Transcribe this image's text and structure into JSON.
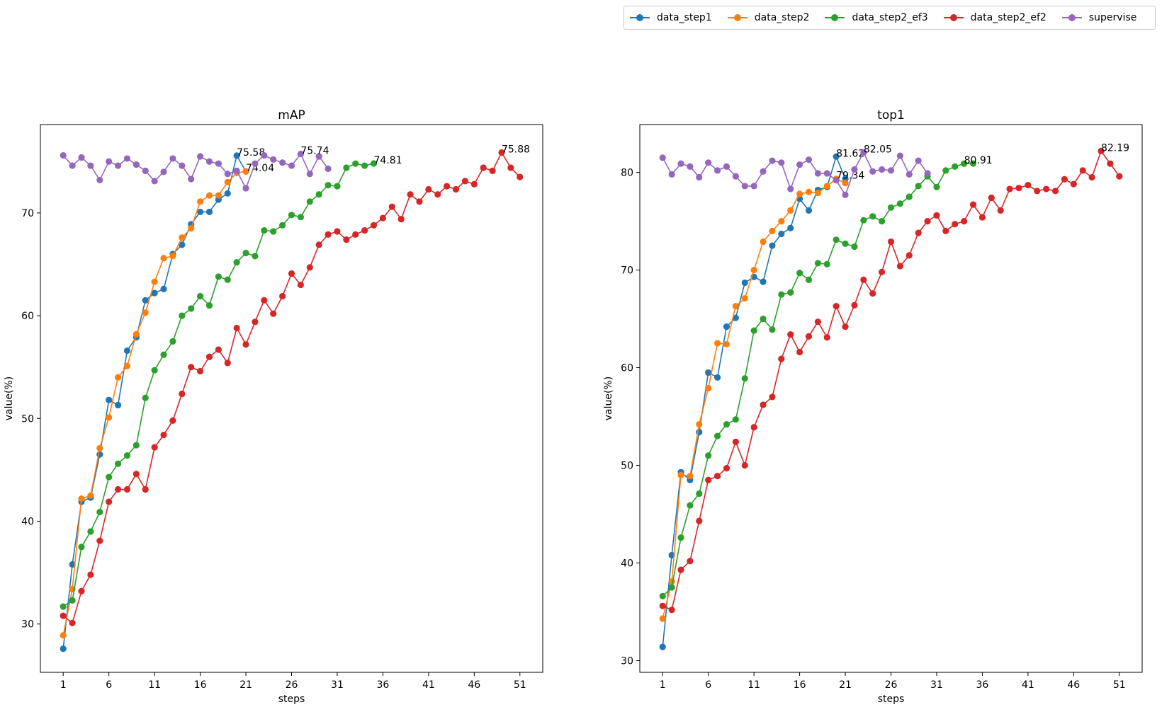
{
  "chart_data": [
    {
      "type": "line",
      "title": "mAP",
      "xlabel": "steps",
      "ylabel": "value(%)",
      "xlim": [
        -1.5,
        53.5
      ],
      "ylim": [
        25.3,
        78.6
      ],
      "xticks": [
        1,
        6,
        11,
        16,
        21,
        26,
        31,
        36,
        41,
        46,
        51
      ],
      "yticks": [
        30,
        40,
        50,
        60,
        70
      ],
      "series": [
        {
          "name": "data_step1",
          "color": "#1f77b4",
          "x_start": 1,
          "values": [
            27.6,
            35.8,
            41.9,
            42.3,
            46.5,
            51.8,
            51.3,
            56.6,
            57.9,
            61.5,
            62.2,
            62.6,
            66.0,
            66.9,
            68.9,
            70.1,
            70.1,
            71.3,
            71.9,
            75.58,
            74.04
          ],
          "annotation": {
            "x": 20,
            "y": 75.58,
            "text": "75.58"
          }
        },
        {
          "name": "data_step2",
          "color": "#ff7f0e",
          "x_start": 1,
          "values": [
            28.9,
            33.4,
            42.2,
            42.5,
            47.1,
            50.1,
            54.0,
            55.1,
            58.2,
            60.3,
            63.3,
            65.6,
            65.8,
            67.6,
            68.5,
            71.1,
            71.7,
            71.7,
            73.0,
            73.9,
            74.04
          ],
          "annotation": {
            "x": 21,
            "y": 74.04,
            "text": "74.04"
          }
        },
        {
          "name": "data_step2_ef3",
          "color": "#2ca02c",
          "x_start": 1,
          "values": [
            31.7,
            32.3,
            37.5,
            39.0,
            40.9,
            44.3,
            45.6,
            46.4,
            47.4,
            52.0,
            54.7,
            56.2,
            57.5,
            60.0,
            60.7,
            61.9,
            61.0,
            63.8,
            63.5,
            65.2,
            66.1,
            65.8,
            68.3,
            68.2,
            68.8,
            69.8,
            69.6,
            71.1,
            71.8,
            72.7,
            72.6,
            74.4,
            74.8,
            74.6,
            74.81
          ],
          "annotation": {
            "x": 35,
            "y": 74.81,
            "text": "74.81"
          }
        },
        {
          "name": "data_step2_ef2",
          "color": "#d62728",
          "x_start": 1,
          "values": [
            30.8,
            30.1,
            33.2,
            34.8,
            38.1,
            41.9,
            43.1,
            43.1,
            44.6,
            43.1,
            47.2,
            48.4,
            49.8,
            52.4,
            55.0,
            54.6,
            56.0,
            56.7,
            55.4,
            58.8,
            57.2,
            59.4,
            61.5,
            60.2,
            61.9,
            64.1,
            63.0,
            64.7,
            66.9,
            67.9,
            68.2,
            67.4,
            67.9,
            68.3,
            68.8,
            69.5,
            70.6,
            69.4,
            71.8,
            71.1,
            72.3,
            71.8,
            72.6,
            72.3,
            73.1,
            72.8,
            74.4,
            74.1,
            75.88,
            74.4,
            73.5
          ],
          "annotation": {
            "x": 49,
            "y": 75.88,
            "text": "75.88"
          }
        },
        {
          "name": "supervise",
          "color": "#9467bd",
          "x_start": 1,
          "values": [
            75.6,
            74.6,
            75.4,
            74.6,
            73.2,
            75.0,
            74.6,
            75.3,
            74.7,
            74.1,
            73.1,
            74.0,
            75.3,
            74.6,
            73.3,
            75.5,
            75.0,
            74.8,
            73.8,
            74.1,
            72.4,
            74.8,
            75.6,
            75.2,
            74.9,
            74.6,
            75.74,
            73.8,
            75.5,
            74.3
          ],
          "annotation": {
            "x": 27,
            "y": 75.74,
            "text": "75.74"
          }
        }
      ]
    },
    {
      "type": "line",
      "title": "top1",
      "xlabel": "steps",
      "ylabel": "value(%)",
      "xlim": [
        -1.5,
        53.5
      ],
      "ylim": [
        28.8,
        84.9
      ],
      "xticks": [
        1,
        6,
        11,
        16,
        21,
        26,
        31,
        36,
        41,
        46,
        51
      ],
      "yticks": [
        30,
        40,
        50,
        60,
        70,
        80
      ],
      "series": [
        {
          "name": "data_step1",
          "color": "#1f77b4",
          "x_start": 1,
          "values": [
            31.4,
            40.8,
            49.3,
            48.5,
            53.4,
            59.5,
            59.0,
            64.2,
            65.1,
            68.7,
            69.3,
            68.8,
            72.5,
            73.7,
            74.3,
            77.3,
            76.1,
            78.2,
            78.5,
            81.62,
            79.34
          ],
          "annotation": {
            "x": 20,
            "y": 81.62,
            "text": "81.62"
          }
        },
        {
          "name": "data_step2",
          "color": "#ff7f0e",
          "x_start": 1,
          "values": [
            34.3,
            38.1,
            49.0,
            48.9,
            54.2,
            57.9,
            62.5,
            62.4,
            66.3,
            67.1,
            70.0,
            72.9,
            74.0,
            75.0,
            76.1,
            77.8,
            78.0,
            77.9,
            78.6,
            79.34,
            78.9
          ],
          "annotation": {
            "x": 20,
            "y": 79.34,
            "text": "79.34"
          }
        },
        {
          "name": "data_step2_ef3",
          "color": "#2ca02c",
          "x_start": 1,
          "values": [
            36.6,
            37.5,
            42.6,
            45.9,
            47.1,
            51.0,
            53.0,
            54.2,
            54.7,
            58.9,
            63.8,
            65.0,
            63.9,
            67.5,
            67.7,
            69.7,
            69.0,
            70.7,
            70.6,
            73.1,
            72.7,
            72.4,
            75.1,
            75.5,
            75.0,
            76.4,
            76.8,
            77.5,
            78.6,
            79.6,
            78.5,
            80.2,
            80.6,
            80.9,
            80.91
          ],
          "annotation": {
            "x": 34,
            "y": 80.91,
            "text": "80.91"
          }
        },
        {
          "name": "data_step2_ef2",
          "color": "#d62728",
          "x_start": 1,
          "values": [
            35.6,
            35.2,
            39.3,
            40.2,
            44.3,
            48.5,
            48.9,
            49.7,
            52.4,
            50.0,
            53.9,
            56.2,
            57.0,
            60.9,
            63.4,
            61.6,
            63.2,
            64.7,
            63.1,
            66.3,
            64.2,
            66.4,
            69.0,
            67.6,
            69.8,
            72.9,
            70.4,
            71.5,
            73.8,
            75.0,
            75.6,
            74.0,
            74.7,
            75.0,
            76.7,
            75.4,
            77.4,
            76.1,
            78.3,
            78.4,
            78.7,
            78.1,
            78.3,
            78.1,
            79.3,
            78.8,
            80.2,
            79.5,
            82.19,
            80.9,
            79.6
          ],
          "annotation": {
            "x": 49,
            "y": 82.19,
            "text": "82.19"
          }
        },
        {
          "name": "supervise",
          "color": "#9467bd",
          "x_start": 1,
          "values": [
            81.5,
            79.8,
            80.9,
            80.6,
            79.5,
            81.0,
            80.2,
            80.6,
            79.6,
            78.6,
            78.6,
            80.1,
            81.2,
            81.0,
            78.3,
            80.8,
            81.3,
            79.9,
            79.9,
            79.2,
            77.7,
            80.3,
            82.05,
            80.1,
            80.3,
            80.2,
            81.7,
            79.8,
            81.2,
            79.9
          ],
          "annotation": {
            "x": 23,
            "y": 82.05,
            "text": "82.05"
          }
        }
      ]
    }
  ]
}
